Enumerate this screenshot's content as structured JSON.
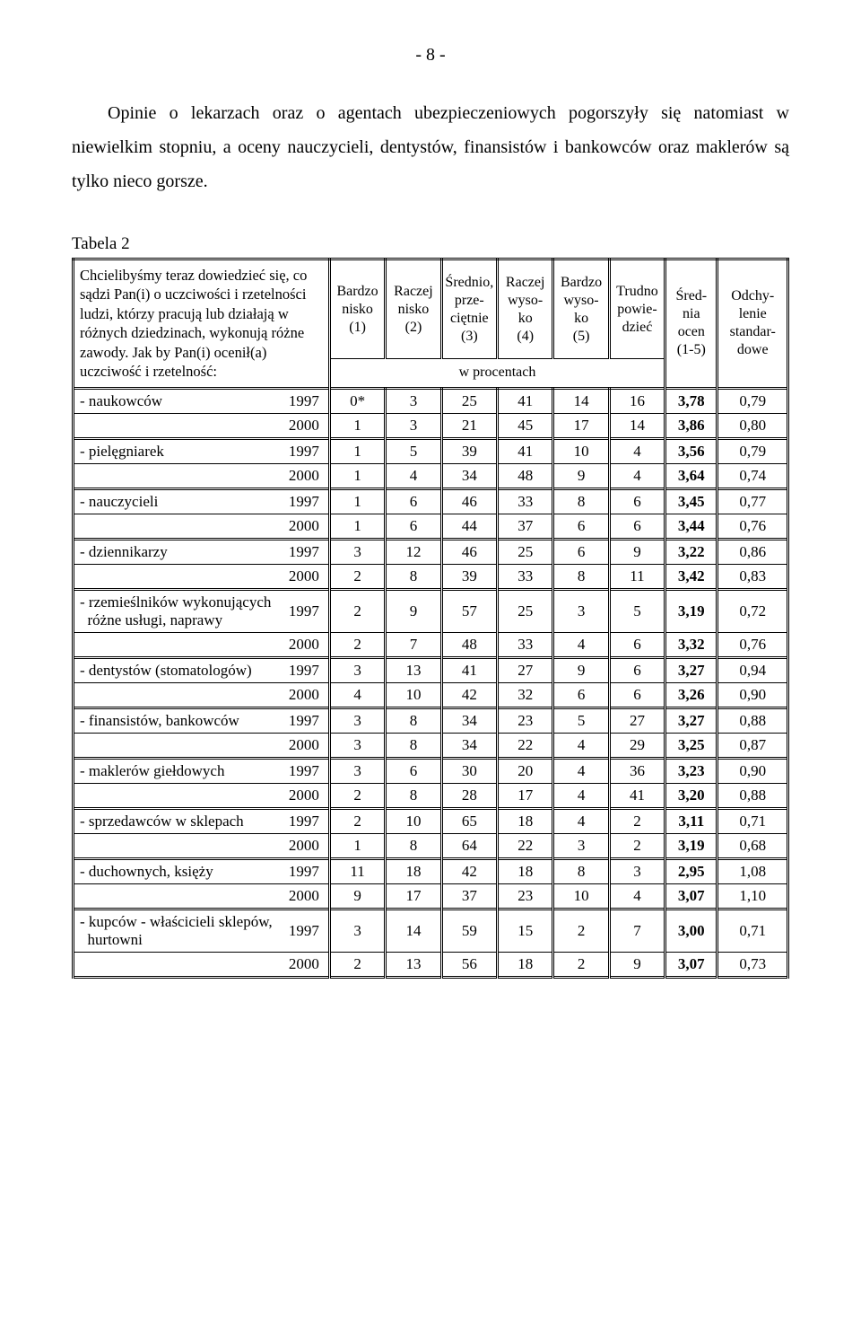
{
  "page_number": "- 8 -",
  "intro": "Opinie o lekarzach oraz o agentach ubezpieczeniowych pogorszyły się natomiast w niewielkim stopniu, a oceny nauczycieli, dentystów, finansistów i bankowców oraz maklerów są tylko nieco gorsze.",
  "table_label": "Tabela 2",
  "question": "Chcielibyśmy teraz dowiedzieć się, co sądzi Pan(i) o uczciwości i rzetelności ludzi, którzy pracują lub działają w różnych dziedzinach, wykonują różne zawody. Jak by Pan(i) ocenił(a) uczciwość i rzetelność:",
  "headers": {
    "c1": "Bardzo\nnisko\n(1)",
    "c2": "Raczej\nnisko\n(2)",
    "c3": "Średnio,\nprze-\nciętnie\n(3)",
    "c4": "Raczej\nwyso-\nko\n(4)",
    "c5": "Bardzo\nwyso-\nko\n(5)",
    "c6": "Trudno\npowie-\ndzieć",
    "c7": "Śred-\nnia\nocen\n(1-5)",
    "c8": "Odchy-\nlenie\nstandar-\ndowe"
  },
  "percent_label": "w procentach",
  "rows": [
    {
      "label": "- naukowców",
      "year": "1997",
      "v": [
        "0*",
        "3",
        "25",
        "41",
        "14",
        "16",
        "3,78",
        "0,79"
      ]
    },
    {
      "label": "",
      "year": "2000",
      "v": [
        "1",
        "3",
        "21",
        "45",
        "17",
        "14",
        "3,86",
        "0,80"
      ]
    },
    {
      "label": "- pielęgniarek",
      "year": "1997",
      "v": [
        "1",
        "5",
        "39",
        "41",
        "10",
        "4",
        "3,56",
        "0,79"
      ]
    },
    {
      "label": "",
      "year": "2000",
      "v": [
        "1",
        "4",
        "34",
        "48",
        "9",
        "4",
        "3,64",
        "0,74"
      ]
    },
    {
      "label": "- nauczycieli",
      "year": "1997",
      "v": [
        "1",
        "6",
        "46",
        "33",
        "8",
        "6",
        "3,45",
        "0,77"
      ]
    },
    {
      "label": "",
      "year": "2000",
      "v": [
        "1",
        "6",
        "44",
        "37",
        "6",
        "6",
        "3,44",
        "0,76"
      ]
    },
    {
      "label": "- dziennikarzy",
      "year": "1997",
      "v": [
        "3",
        "12",
        "46",
        "25",
        "6",
        "9",
        "3,22",
        "0,86"
      ]
    },
    {
      "label": "",
      "year": "2000",
      "v": [
        "2",
        "8",
        "39",
        "33",
        "8",
        "11",
        "3,42",
        "0,83"
      ]
    },
    {
      "label": "- rzemieślników wykonujących\n  różne usługi, naprawy",
      "year": "1997",
      "v": [
        "2",
        "9",
        "57",
        "25",
        "3",
        "5",
        "3,19",
        "0,72"
      ]
    },
    {
      "label": "",
      "year": "2000",
      "v": [
        "2",
        "7",
        "48",
        "33",
        "4",
        "6",
        "3,32",
        "0,76"
      ]
    },
    {
      "label": "- dentystów (stomatologów)",
      "year": "1997",
      "v": [
        "3",
        "13",
        "41",
        "27",
        "9",
        "6",
        "3,27",
        "0,94"
      ]
    },
    {
      "label": "",
      "year": "2000",
      "v": [
        "4",
        "10",
        "42",
        "32",
        "6",
        "6",
        "3,26",
        "0,90"
      ]
    },
    {
      "label": "- finansistów, bankowców",
      "year": "1997",
      "v": [
        "3",
        "8",
        "34",
        "23",
        "5",
        "27",
        "3,27",
        "0,88"
      ]
    },
    {
      "label": "",
      "year": "2000",
      "v": [
        "3",
        "8",
        "34",
        "22",
        "4",
        "29",
        "3,25",
        "0,87"
      ]
    },
    {
      "label": "- maklerów giełdowych",
      "year": "1997",
      "v": [
        "3",
        "6",
        "30",
        "20",
        "4",
        "36",
        "3,23",
        "0,90"
      ]
    },
    {
      "label": "",
      "year": "2000",
      "v": [
        "2",
        "8",
        "28",
        "17",
        "4",
        "41",
        "3,20",
        "0,88"
      ]
    },
    {
      "label": "- sprzedawców w sklepach",
      "year": "1997",
      "v": [
        "2",
        "10",
        "65",
        "18",
        "4",
        "2",
        "3,11",
        "0,71"
      ]
    },
    {
      "label": "",
      "year": "2000",
      "v": [
        "1",
        "8",
        "64",
        "22",
        "3",
        "2",
        "3,19",
        "0,68"
      ]
    },
    {
      "label": "- duchownych, księży",
      "year": "1997",
      "v": [
        "11",
        "18",
        "42",
        "18",
        "8",
        "3",
        "2,95",
        "1,08"
      ]
    },
    {
      "label": "",
      "year": "2000",
      "v": [
        "9",
        "17",
        "37",
        "23",
        "10",
        "4",
        "3,07",
        "1,10"
      ]
    },
    {
      "label": "- kupców - właścicieli sklepów,\n  hurtowni",
      "year": "1997",
      "v": [
        "3",
        "14",
        "59",
        "15",
        "2",
        "7",
        "3,00",
        "0,71"
      ]
    },
    {
      "label": "",
      "year": "2000",
      "v": [
        "2",
        "13",
        "56",
        "18",
        "2",
        "9",
        "3,07",
        "0,73"
      ]
    }
  ]
}
